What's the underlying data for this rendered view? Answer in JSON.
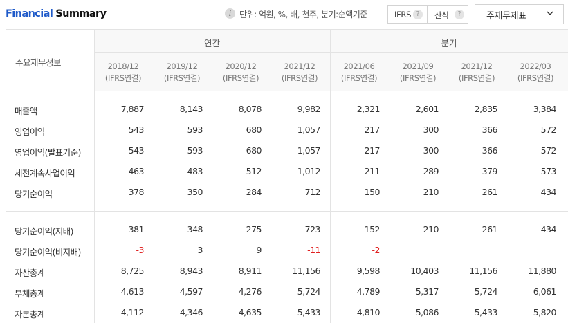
{
  "header": {
    "title_part1": "Financial",
    "title_part2": "Summary",
    "unit_note": "단위: 억원, %, 배, 천주, 분기:순액기준",
    "ifrs_button": "IFRS",
    "calc_button": "산식",
    "help_mark": "?",
    "info_mark": "i",
    "statement_select": "주재무제표"
  },
  "table": {
    "corner_label": "주요재무정보",
    "annual_label": "연간",
    "quarter_label": "분기",
    "periods": [
      {
        "date": "2018/12",
        "basis": "(IFRS연결)"
      },
      {
        "date": "2019/12",
        "basis": "(IFRS연결)"
      },
      {
        "date": "2020/12",
        "basis": "(IFRS연결)"
      },
      {
        "date": "2021/12",
        "basis": "(IFRS연결)"
      },
      {
        "date": "2021/06",
        "basis": "(IFRS연결)"
      },
      {
        "date": "2021/09",
        "basis": "(IFRS연결)"
      },
      {
        "date": "2021/12",
        "basis": "(IFRS연결)"
      },
      {
        "date": "2022/03",
        "basis": "(IFRS연결)"
      }
    ],
    "rows": [
      {
        "label": "매출액",
        "values": [
          "7,887",
          "8,143",
          "8,078",
          "9,982",
          "2,321",
          "2,601",
          "2,835",
          "3,384"
        ]
      },
      {
        "label": "영업이익",
        "values": [
          "543",
          "593",
          "680",
          "1,057",
          "217",
          "300",
          "366",
          "572"
        ]
      },
      {
        "label": "영업이익(발표기준)",
        "values": [
          "543",
          "593",
          "680",
          "1,057",
          "217",
          "300",
          "366",
          "572"
        ]
      },
      {
        "label": "세전계속사업이익",
        "values": [
          "463",
          "483",
          "512",
          "1,012",
          "211",
          "289",
          "379",
          "573"
        ]
      },
      {
        "label": "당기순이익",
        "values": [
          "378",
          "350",
          "284",
          "712",
          "150",
          "210",
          "261",
          "434"
        ]
      },
      {
        "label": "당기순이익(지배)",
        "values": [
          "381",
          "348",
          "275",
          "723",
          "152",
          "210",
          "261",
          "434"
        ]
      },
      {
        "label": "당기순이익(비지배)",
        "values": [
          "-3",
          "3",
          "9",
          "-11",
          "-2",
          "",
          "",
          ""
        ]
      },
      {
        "label": "자산총계",
        "values": [
          "8,725",
          "8,943",
          "8,911",
          "11,156",
          "9,598",
          "10,403",
          "11,156",
          "11,880"
        ]
      },
      {
        "label": "부채총계",
        "values": [
          "4,613",
          "4,597",
          "4,276",
          "5,724",
          "4,789",
          "5,317",
          "5,724",
          "6,061"
        ]
      },
      {
        "label": "자본총계",
        "values": [
          "4,112",
          "4,346",
          "4,635",
          "5,433",
          "4,810",
          "5,086",
          "5,433",
          "5,820"
        ]
      }
    ]
  },
  "colors": {
    "title_blue": "#1f5ac9",
    "negative_red": "#e02020",
    "grid": "#e3e3e3"
  }
}
